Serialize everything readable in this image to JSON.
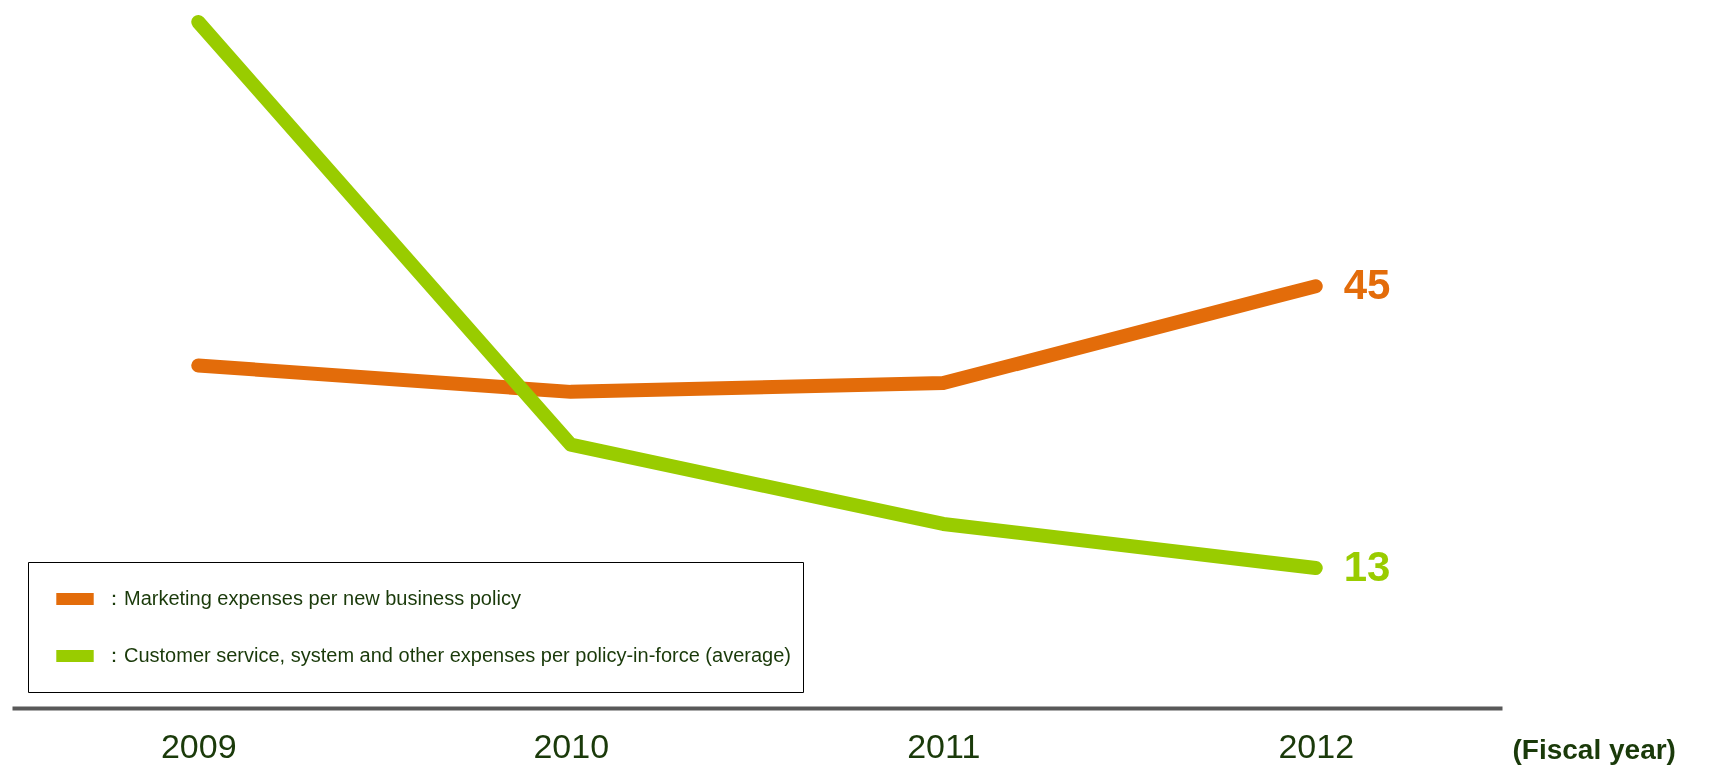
{
  "chart_data": {
    "type": "line",
    "xlabel": "(Fiscal year)",
    "categories": [
      "2009",
      "2010",
      "2011",
      "2012"
    ],
    "series": [
      {
        "name": "：Marketing expenses per new business policy",
        "color": "#e36c0a",
        "values": [
          36,
          33,
          34,
          45
        ],
        "value_labels": [
          null,
          null,
          null,
          "45"
        ]
      },
      {
        "name": "：Customer service, system and other expenses per policy-in-force (average)",
        "color": "#99cc00",
        "values": [
          75,
          27,
          18,
          13
        ],
        "value_labels": [
          null,
          null,
          null,
          "13"
        ]
      }
    ],
    "tick_labels": "x",
    "grid": false,
    "legend": "bottom left",
    "marker": "none",
    "line_style": "solid"
  }
}
